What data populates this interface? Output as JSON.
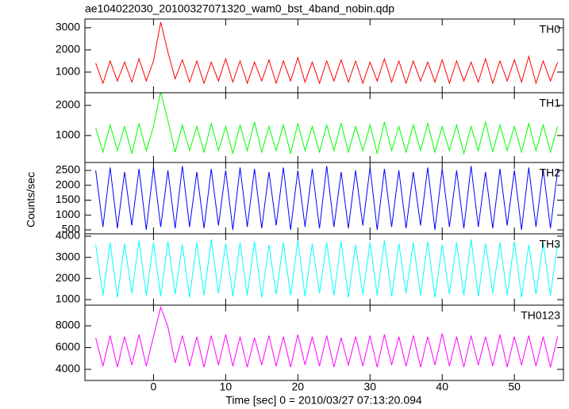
{
  "chart_data": {
    "type": "line",
    "title": "ae104022030_20100327071320_wam0_bst_4band_nobin.qdp",
    "x_label": "Time [sec] 0 = 2010/03/27 07:13:20.094",
    "y_label": "Counts/sec",
    "xlim": [
      -9.5,
      56.8
    ],
    "xticks": [
      0,
      10,
      20,
      30,
      40,
      50
    ],
    "x": [
      -8,
      -7,
      -6,
      -5,
      -4,
      -3,
      -2,
      -1,
      0,
      1,
      2,
      3,
      4,
      5,
      6,
      7,
      8,
      9,
      10,
      11,
      12,
      13,
      14,
      15,
      16,
      17,
      18,
      19,
      20,
      21,
      22,
      23,
      24,
      25,
      26,
      27,
      28,
      29,
      30,
      31,
      32,
      33,
      34,
      35,
      36,
      37,
      38,
      39,
      40,
      41,
      42,
      43,
      44,
      45,
      46,
      47,
      48,
      49,
      50,
      51,
      52,
      53,
      54,
      55,
      56
    ],
    "series": [
      {
        "name": "TH0",
        "color": "#ff0000",
        "ylim": [
          70,
          3390
        ],
        "yticks": [
          1000,
          2000,
          3000
        ],
        "values": [
          1400,
          500,
          1500,
          600,
          1450,
          550,
          1600,
          600,
          1500,
          3250,
          1900,
          700,
          1550,
          550,
          1500,
          500,
          1450,
          600,
          1600,
          550,
          1500,
          500,
          1450,
          600,
          1550,
          500,
          1500,
          600,
          1650,
          550,
          1450,
          500,
          1500,
          600,
          1550,
          550,
          1500,
          500,
          1450,
          600,
          1600,
          550,
          1500,
          500,
          1500,
          600,
          1450,
          550,
          1550,
          500,
          1500,
          600,
          1450,
          550,
          1600,
          500,
          1500,
          600,
          1550,
          550,
          1700,
          500,
          1500,
          600,
          1450
        ]
      },
      {
        "name": "TH1",
        "color": "#00ff00",
        "ylim": [
          105,
          2420
        ],
        "yticks": [
          1000,
          2000
        ],
        "values": [
          1250,
          450,
          1350,
          500,
          1300,
          400,
          1400,
          500,
          1300,
          2450,
          1500,
          450,
          1350,
          500,
          1300,
          450,
          1400,
          500,
          1300,
          400,
          1350,
          500,
          1450,
          450,
          1300,
          500,
          1350,
          400,
          1400,
          500,
          1300,
          450,
          1350,
          500,
          1400,
          450,
          1300,
          500,
          1350,
          400,
          1450,
          500,
          1300,
          450,
          1350,
          500,
          1400,
          450,
          1300,
          500,
          1350,
          400,
          1300,
          500,
          1450,
          450,
          1350,
          500,
          1300,
          450,
          1400,
          500,
          1350,
          450,
          1300
        ]
      },
      {
        "name": "TH2",
        "color": "#0000ff",
        "ylim": [
          367,
          2767
        ],
        "yticks": [
          500,
          1000,
          1500,
          2000,
          2500
        ],
        "values": [
          2500,
          600,
          2600,
          550,
          2450,
          650,
          2550,
          500,
          2600,
          600,
          2500,
          550,
          2650,
          600,
          2450,
          550,
          2550,
          650,
          2500,
          500,
          2600,
          600,
          2550,
          550,
          2450,
          650,
          2600,
          500,
          2500,
          600,
          2550,
          550,
          2650,
          600,
          2450,
          550,
          2500,
          650,
          2600,
          500,
          2550,
          600,
          2500,
          550,
          2450,
          650,
          2600,
          500,
          2550,
          600,
          2500,
          550,
          2650,
          600,
          2450,
          550,
          2550,
          650,
          2500,
          500,
          2600,
          600,
          2550,
          550,
          2500
        ]
      },
      {
        "name": "TH3",
        "color": "#00ffff",
        "ylim": [
          737,
          4112
        ],
        "yticks": [
          1000,
          2000,
          3000,
          4000
        ],
        "values": [
          3600,
          1200,
          3700,
          1100,
          3650,
          1300,
          3800,
          1200,
          3700,
          1150,
          3750,
          1250,
          3600,
          1100,
          3700,
          1200,
          3850,
          1300,
          3650,
          1150,
          3700,
          1200,
          3750,
          1100,
          3600,
          1250,
          3700,
          1200,
          3800,
          1150,
          3650,
          1300,
          3700,
          1200,
          3750,
          1100,
          3600,
          1250,
          3700,
          1200,
          3800,
          1150,
          3650,
          1300,
          3700,
          1200,
          3750,
          1100,
          3600,
          1250,
          3700,
          1200,
          3850,
          1150,
          3650,
          1300,
          3700,
          1200,
          3750,
          1100,
          3600,
          1250,
          3700,
          1200,
          3650
        ]
      },
      {
        "name": "TH0123",
        "color": "#ff00ff",
        "ylim": [
          2980,
          9890
        ],
        "yticks": [
          4000,
          6000,
          8000
        ],
        "values": [
          6900,
          4300,
          7100,
          4200,
          7000,
          4400,
          7200,
          4300,
          7000,
          9700,
          7900,
          4600,
          7100,
          4300,
          7000,
          4200,
          7100,
          4400,
          7200,
          4300,
          7000,
          4200,
          6900,
          4400,
          7100,
          4300,
          7000,
          4200,
          7200,
          4400,
          7000,
          4300,
          7100,
          4200,
          6900,
          4400,
          7000,
          4300,
          7100,
          4200,
          7200,
          4400,
          7000,
          4300,
          7100,
          4200,
          7000,
          4400,
          7300,
          4300,
          7000,
          4200,
          7100,
          4400,
          7000,
          4300,
          7200,
          4200,
          7000,
          4400,
          7100,
          4300,
          7000,
          4200,
          7000
        ]
      }
    ]
  }
}
